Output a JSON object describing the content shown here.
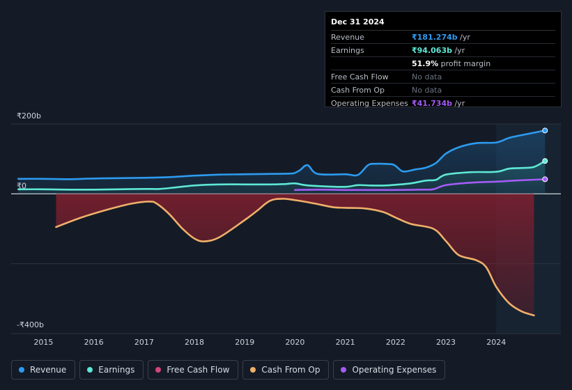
{
  "tooltip": {
    "date": "Dec 31 2024",
    "rows": [
      {
        "label": "Revenue",
        "value": "₹181.274b",
        "unit": " /yr",
        "color": "#2d9bf0"
      },
      {
        "label": "Earnings",
        "value": "₹94.063b",
        "unit": " /yr",
        "color": "#5ee8d6"
      },
      {
        "label": "",
        "value": "51.9%",
        "unit": " profit margin",
        "color": "#ffffff"
      },
      {
        "label": "Free Cash Flow",
        "value": "No data",
        "unit": "",
        "color": "#6b7280"
      },
      {
        "label": "Cash From Op",
        "value": "No data",
        "unit": "",
        "color": "#6b7280"
      },
      {
        "label": "Operating Expenses",
        "value": "₹41.734b",
        "unit": " /yr",
        "color": "#a35cf5"
      }
    ]
  },
  "legend": [
    {
      "label": "Revenue",
      "color": "#2d9bf0"
    },
    {
      "label": "Earnings",
      "color": "#5ee8d6"
    },
    {
      "label": "Free Cash Flow",
      "color": "#d0467b"
    },
    {
      "label": "Cash From Op",
      "color": "#f0b06a"
    },
    {
      "label": "Operating Expenses",
      "color": "#a35cf5"
    }
  ],
  "chart_data": {
    "type": "line",
    "title": "",
    "y_unit": "₹ billions",
    "ylim": [
      -400,
      200
    ],
    "xlim": [
      2014.3,
      2025.0
    ],
    "y_tick_labels": [
      {
        "value": 200,
        "label": "₹200b"
      },
      {
        "value": 0,
        "label": "₹0"
      },
      {
        "value": -400,
        "label": "-₹400b"
      }
    ],
    "x_ticks": [
      2015,
      2016,
      2017,
      2018,
      2019,
      2020,
      2021,
      2022,
      2023,
      2024
    ],
    "highlight_start": 2024.0,
    "series": [
      {
        "name": "Revenue",
        "color": "#2d9bf0",
        "x": [
          2014.5,
          2015.0,
          2015.5,
          2016.0,
          2016.5,
          2017.0,
          2017.5,
          2018.0,
          2018.5,
          2019.0,
          2019.5,
          2019.9,
          2020.0,
          2020.1,
          2020.25,
          2020.45,
          2021.0,
          2021.25,
          2021.45,
          2021.6,
          2021.9,
          2022.0,
          2022.15,
          2022.4,
          2022.6,
          2022.8,
          2023.0,
          2023.25,
          2023.6,
          2024.0,
          2024.25,
          2024.5,
          2024.97
        ],
        "values": [
          43,
          43,
          42,
          44,
          45,
          46,
          48,
          52,
          55,
          56,
          57,
          58,
          60,
          68,
          82,
          57,
          56,
          54,
          82,
          86,
          85,
          80,
          64,
          70,
          75,
          88,
          115,
          133,
          145,
          147,
          160,
          168,
          181.274
        ]
      },
      {
        "name": "Earnings",
        "color": "#5ee8d6",
        "x": [
          2014.5,
          2015.0,
          2015.5,
          2016.0,
          2016.5,
          2017.0,
          2017.3,
          2017.6,
          2018.0,
          2018.5,
          2019.0,
          2019.5,
          2019.8,
          2020.0,
          2020.2,
          2020.5,
          2021.0,
          2021.25,
          2021.5,
          2021.8,
          2022.0,
          2022.3,
          2022.6,
          2022.8,
          2023.0,
          2023.5,
          2024.0,
          2024.25,
          2024.5,
          2024.75,
          2024.97
        ],
        "values": [
          13,
          13,
          12,
          12,
          13,
          14,
          14,
          18,
          24,
          27,
          27,
          27,
          28,
          30,
          25,
          22,
          20,
          25,
          24,
          24,
          26,
          30,
          38,
          40,
          55,
          62,
          63,
          72,
          74,
          77,
          94.063
        ]
      },
      {
        "name": "Operating Expenses",
        "color": "#a35cf5",
        "x": [
          2020.0,
          2020.5,
          2021.0,
          2021.5,
          2022.0,
          2022.5,
          2022.75,
          2023.0,
          2023.5,
          2024.0,
          2024.25,
          2024.5,
          2024.97
        ],
        "values": [
          11,
          12,
          11,
          11,
          11,
          12,
          13,
          25,
          32,
          35,
          37,
          39,
          41.734
        ]
      },
      {
        "name": "Cash From Op",
        "color": "#f0b06a",
        "x": [
          2015.25,
          2015.75,
          2016.25,
          2016.75,
          2017.1,
          2017.25,
          2017.5,
          2017.75,
          2018.0,
          2018.2,
          2018.5,
          2019.0,
          2019.25,
          2019.5,
          2019.75,
          2020.0,
          2020.4,
          2020.75,
          2021.0,
          2021.4,
          2021.75,
          2022.0,
          2022.3,
          2022.75,
          2023.0,
          2023.25,
          2023.6,
          2023.8,
          2024.0,
          2024.25,
          2024.5,
          2024.75
        ],
        "values": [
          -95,
          -68,
          -46,
          -28,
          -22,
          -28,
          -58,
          -98,
          -128,
          -136,
          -124,
          -75,
          -48,
          -20,
          -14,
          -18,
          -28,
          -38,
          -40,
          -42,
          -52,
          -68,
          -86,
          -100,
          -135,
          -175,
          -190,
          -210,
          -266,
          -312,
          -336,
          -348
        ]
      }
    ]
  }
}
